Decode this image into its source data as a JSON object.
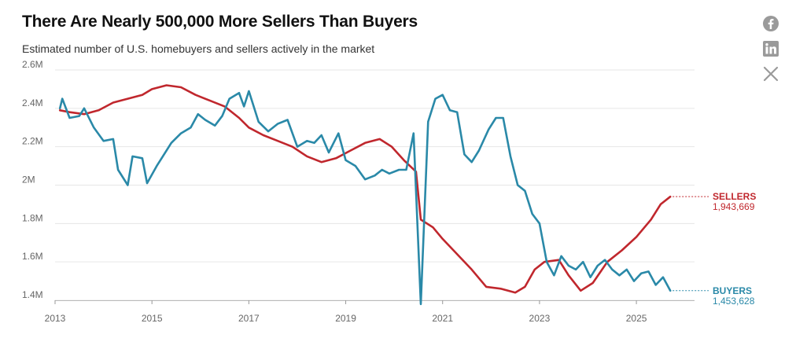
{
  "header": {
    "title": "There Are Nearly 500,000 More Sellers Than Buyers",
    "subtitle": "Estimated number of U.S. homebuyers and sellers actively in the market"
  },
  "share": [
    {
      "name": "facebook-icon",
      "label": "f"
    },
    {
      "name": "linkedin-icon",
      "label": "in"
    },
    {
      "name": "x-icon",
      "label": "X"
    }
  ],
  "colors": {
    "sellers": "#c0272d",
    "buyers": "#2a89a8",
    "grid": "#e6e6e6",
    "icon": "#9a9a9a"
  },
  "chart_data": {
    "type": "line",
    "xlabel": "",
    "ylabel": "",
    "x_ticks": [
      "2013",
      "2015",
      "2017",
      "2019",
      "2021",
      "2023",
      "2025"
    ],
    "y_ticks": [
      "1.4M",
      "1.6M",
      "1.8M",
      "2M",
      "2.2M",
      "2.4M",
      "2.6M"
    ],
    "ylim": [
      1.4,
      2.6
    ],
    "xlim": [
      2013,
      2026.2
    ],
    "grid": "horizontal",
    "series": [
      {
        "name": "SELLERS",
        "end_label": "1,943,669",
        "color": "#c0272d",
        "points": [
          [
            2013.1,
            2.39
          ],
          [
            2013.3,
            2.38
          ],
          [
            2013.6,
            2.37
          ],
          [
            2013.9,
            2.39
          ],
          [
            2014.2,
            2.43
          ],
          [
            2014.5,
            2.45
          ],
          [
            2014.8,
            2.47
          ],
          [
            2015.0,
            2.5
          ],
          [
            2015.3,
            2.52
          ],
          [
            2015.6,
            2.51
          ],
          [
            2015.9,
            2.47
          ],
          [
            2016.2,
            2.44
          ],
          [
            2016.5,
            2.41
          ],
          [
            2016.8,
            2.35
          ],
          [
            2017.0,
            2.3
          ],
          [
            2017.3,
            2.26
          ],
          [
            2017.6,
            2.23
          ],
          [
            2017.9,
            2.2
          ],
          [
            2018.2,
            2.15
          ],
          [
            2018.5,
            2.12
          ],
          [
            2018.8,
            2.14
          ],
          [
            2019.1,
            2.18
          ],
          [
            2019.4,
            2.22
          ],
          [
            2019.7,
            2.24
          ],
          [
            2019.95,
            2.2
          ],
          [
            2020.2,
            2.13
          ],
          [
            2020.45,
            2.07
          ],
          [
            2020.55,
            1.82
          ],
          [
            2020.8,
            1.78
          ],
          [
            2021.0,
            1.72
          ],
          [
            2021.3,
            1.64
          ],
          [
            2021.6,
            1.56
          ],
          [
            2021.9,
            1.47
          ],
          [
            2022.2,
            1.46
          ],
          [
            2022.5,
            1.44
          ],
          [
            2022.7,
            1.47
          ],
          [
            2022.9,
            1.56
          ],
          [
            2023.1,
            1.6
          ],
          [
            2023.4,
            1.61
          ],
          [
            2023.6,
            1.53
          ],
          [
            2023.85,
            1.45
          ],
          [
            2024.1,
            1.49
          ],
          [
            2024.4,
            1.6
          ],
          [
            2024.7,
            1.66
          ],
          [
            2025.0,
            1.73
          ],
          [
            2025.3,
            1.82
          ],
          [
            2025.5,
            1.9
          ],
          [
            2025.7,
            1.94
          ]
        ]
      },
      {
        "name": "BUYERS",
        "end_label": "1,453,628",
        "color": "#2a89a8",
        "points": [
          [
            2013.1,
            2.4
          ],
          [
            2013.15,
            2.45
          ],
          [
            2013.3,
            2.35
          ],
          [
            2013.5,
            2.36
          ],
          [
            2013.6,
            2.4
          ],
          [
            2013.8,
            2.3
          ],
          [
            2014.0,
            2.23
          ],
          [
            2014.2,
            2.24
          ],
          [
            2014.3,
            2.08
          ],
          [
            2014.5,
            2.0
          ],
          [
            2014.6,
            2.15
          ],
          [
            2014.8,
            2.14
          ],
          [
            2014.9,
            2.01
          ],
          [
            2015.1,
            2.1
          ],
          [
            2015.2,
            2.14
          ],
          [
            2015.4,
            2.22
          ],
          [
            2015.6,
            2.27
          ],
          [
            2015.8,
            2.3
          ],
          [
            2015.95,
            2.37
          ],
          [
            2016.1,
            2.34
          ],
          [
            2016.3,
            2.31
          ],
          [
            2016.45,
            2.36
          ],
          [
            2016.6,
            2.45
          ],
          [
            2016.8,
            2.48
          ],
          [
            2016.9,
            2.41
          ],
          [
            2017.0,
            2.49
          ],
          [
            2017.2,
            2.33
          ],
          [
            2017.4,
            2.28
          ],
          [
            2017.6,
            2.32
          ],
          [
            2017.8,
            2.34
          ],
          [
            2018.0,
            2.2
          ],
          [
            2018.2,
            2.23
          ],
          [
            2018.35,
            2.22
          ],
          [
            2018.5,
            2.26
          ],
          [
            2018.65,
            2.17
          ],
          [
            2018.85,
            2.27
          ],
          [
            2019.0,
            2.13
          ],
          [
            2019.2,
            2.1
          ],
          [
            2019.4,
            2.03
          ],
          [
            2019.6,
            2.05
          ],
          [
            2019.75,
            2.08
          ],
          [
            2019.9,
            2.06
          ],
          [
            2020.1,
            2.08
          ],
          [
            2020.25,
            2.08
          ],
          [
            2020.4,
            2.27
          ],
          [
            2020.55,
            1.38
          ],
          [
            2020.7,
            2.33
          ],
          [
            2020.85,
            2.45
          ],
          [
            2021.0,
            2.47
          ],
          [
            2021.15,
            2.39
          ],
          [
            2021.3,
            2.38
          ],
          [
            2021.45,
            2.16
          ],
          [
            2021.6,
            2.12
          ],
          [
            2021.75,
            2.18
          ],
          [
            2021.95,
            2.29
          ],
          [
            2022.1,
            2.35
          ],
          [
            2022.25,
            2.35
          ],
          [
            2022.4,
            2.15
          ],
          [
            2022.55,
            2.0
          ],
          [
            2022.7,
            1.97
          ],
          [
            2022.85,
            1.85
          ],
          [
            2023.0,
            1.8
          ],
          [
            2023.15,
            1.6
          ],
          [
            2023.3,
            1.53
          ],
          [
            2023.45,
            1.63
          ],
          [
            2023.6,
            1.58
          ],
          [
            2023.75,
            1.56
          ],
          [
            2023.9,
            1.6
          ],
          [
            2024.05,
            1.52
          ],
          [
            2024.2,
            1.58
          ],
          [
            2024.35,
            1.61
          ],
          [
            2024.5,
            1.56
          ],
          [
            2024.65,
            1.53
          ],
          [
            2024.8,
            1.56
          ],
          [
            2024.95,
            1.5
          ],
          [
            2025.1,
            1.54
          ],
          [
            2025.25,
            1.55
          ],
          [
            2025.4,
            1.48
          ],
          [
            2025.55,
            1.52
          ],
          [
            2025.7,
            1.45
          ]
        ]
      }
    ]
  }
}
